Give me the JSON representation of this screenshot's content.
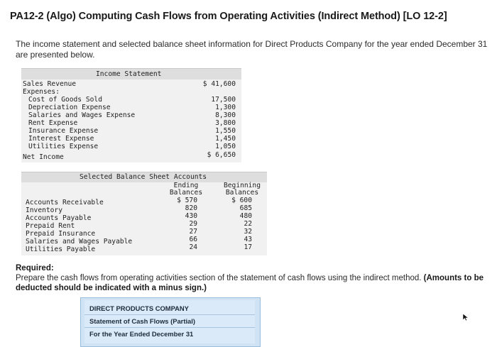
{
  "title": "PA12-2 (Algo) Computing Cash Flows from Operating Activities (Indirect Method) [LO 12-2]",
  "intro": "The income statement and selected balance sheet information for Direct Products Company for the year ended December 31 are presented below.",
  "income_statement": {
    "header": "Income Statement",
    "sales_label": "Sales Revenue",
    "sales_value": "$ 41,600",
    "expenses_label": "Expenses:",
    "expenses": [
      {
        "label": "Cost of Goods Sold",
        "value": "17,500"
      },
      {
        "label": "Depreciation Expense",
        "value": "1,300"
      },
      {
        "label": "Salaries and Wages Expense",
        "value": "8,300"
      },
      {
        "label": "Rent Expense",
        "value": "3,800"
      },
      {
        "label": "Insurance Expense",
        "value": "1,550"
      },
      {
        "label": "Interest Expense",
        "value": "1,450"
      },
      {
        "label": "Utilities Expense",
        "value": "1,050"
      }
    ],
    "net_income_label": "Net Income",
    "net_income_value": "$ 6,650"
  },
  "balance_sheet": {
    "header": "Selected Balance Sheet Accounts",
    "col_ending_1": "Ending",
    "col_ending_2": "Balances",
    "col_beginning_1": "Beginning",
    "col_beginning_2": "Balances",
    "rows": [
      {
        "label": "Accounts Receivable",
        "ending": "$ 570",
        "beginning": "$ 600"
      },
      {
        "label": "Inventory",
        "ending": "820",
        "beginning": "685"
      },
      {
        "label": "Accounts Payable",
        "ending": "430",
        "beginning": "480"
      },
      {
        "label": "Prepaid Rent",
        "ending": "29",
        "beginning": "22"
      },
      {
        "label": "Prepaid Insurance",
        "ending": "27",
        "beginning": "32"
      },
      {
        "label": "Salaries and Wages Payable",
        "ending": "66",
        "beginning": "43"
      },
      {
        "label": "Utilities Payable",
        "ending": "24",
        "beginning": "17"
      }
    ]
  },
  "required": {
    "label": "Required:",
    "text": "Prepare the cash flows from operating activities section of the statement of cash flows using the indirect method.",
    "note": "(Amounts to be deducted should be indicated with a minus sign.)"
  },
  "cash_flow_header": {
    "company": "DIRECT PRODUCTS COMPANY",
    "statement": "Statement of Cash Flows (Partial)",
    "period": "For the Year Ended December 31"
  },
  "icons": {
    "cursor": "mouse-pointer-icon"
  }
}
